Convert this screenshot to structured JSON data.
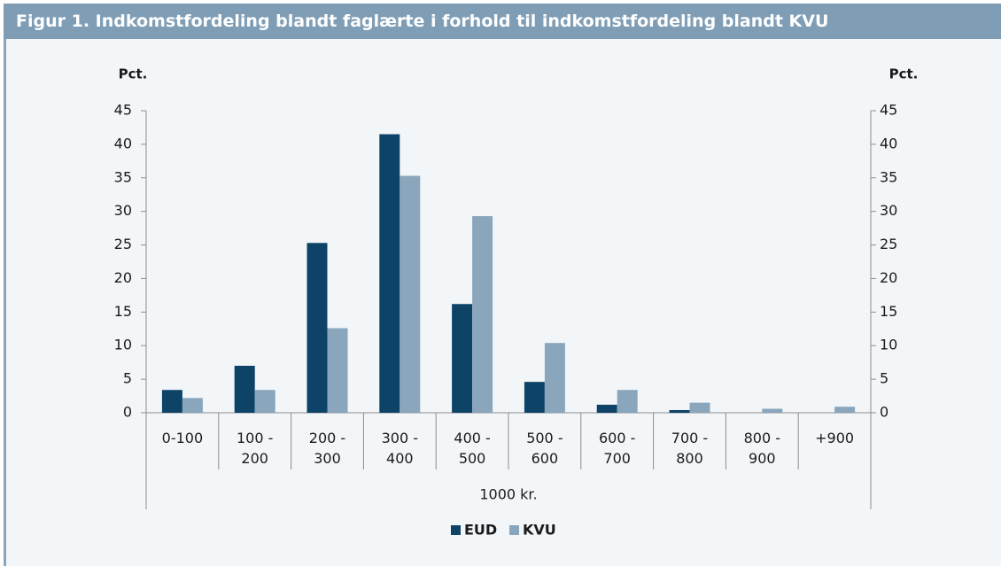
{
  "chart_data": {
    "type": "bar",
    "title": "Figur 1. Indkomstfordeling blandt faglærte i forhold til indkomstfordeling blandt KVU",
    "y_label": "Pct.",
    "y2_label": "Pct.",
    "x_label": "1000 kr.",
    "categories": [
      "0-100",
      "100 - 200",
      "200 - 300",
      "300 - 400",
      "400 - 500",
      "500 - 600",
      "600 - 700",
      "700 - 800",
      "800 - 900",
      "+900"
    ],
    "series": [
      {
        "name": "EUD",
        "color": "#0e4368",
        "values": [
          3.4,
          7.0,
          25.3,
          41.5,
          16.2,
          4.6,
          1.2,
          0.4,
          0,
          0
        ]
      },
      {
        "name": "KVU",
        "color": "#8aa6bc",
        "values": [
          2.2,
          3.4,
          12.6,
          35.3,
          29.3,
          10.4,
          3.4,
          1.5,
          0.6,
          0.9
        ]
      }
    ],
    "ylim": [
      0,
      45
    ],
    "yticks": [
      0,
      5,
      10,
      15,
      20,
      25,
      30,
      35,
      40,
      45
    ],
    "y2lim": [
      0,
      45
    ],
    "y2ticks": [
      0,
      5,
      10,
      15,
      20,
      25,
      30,
      35,
      40,
      45
    ],
    "legend": "bottom"
  }
}
